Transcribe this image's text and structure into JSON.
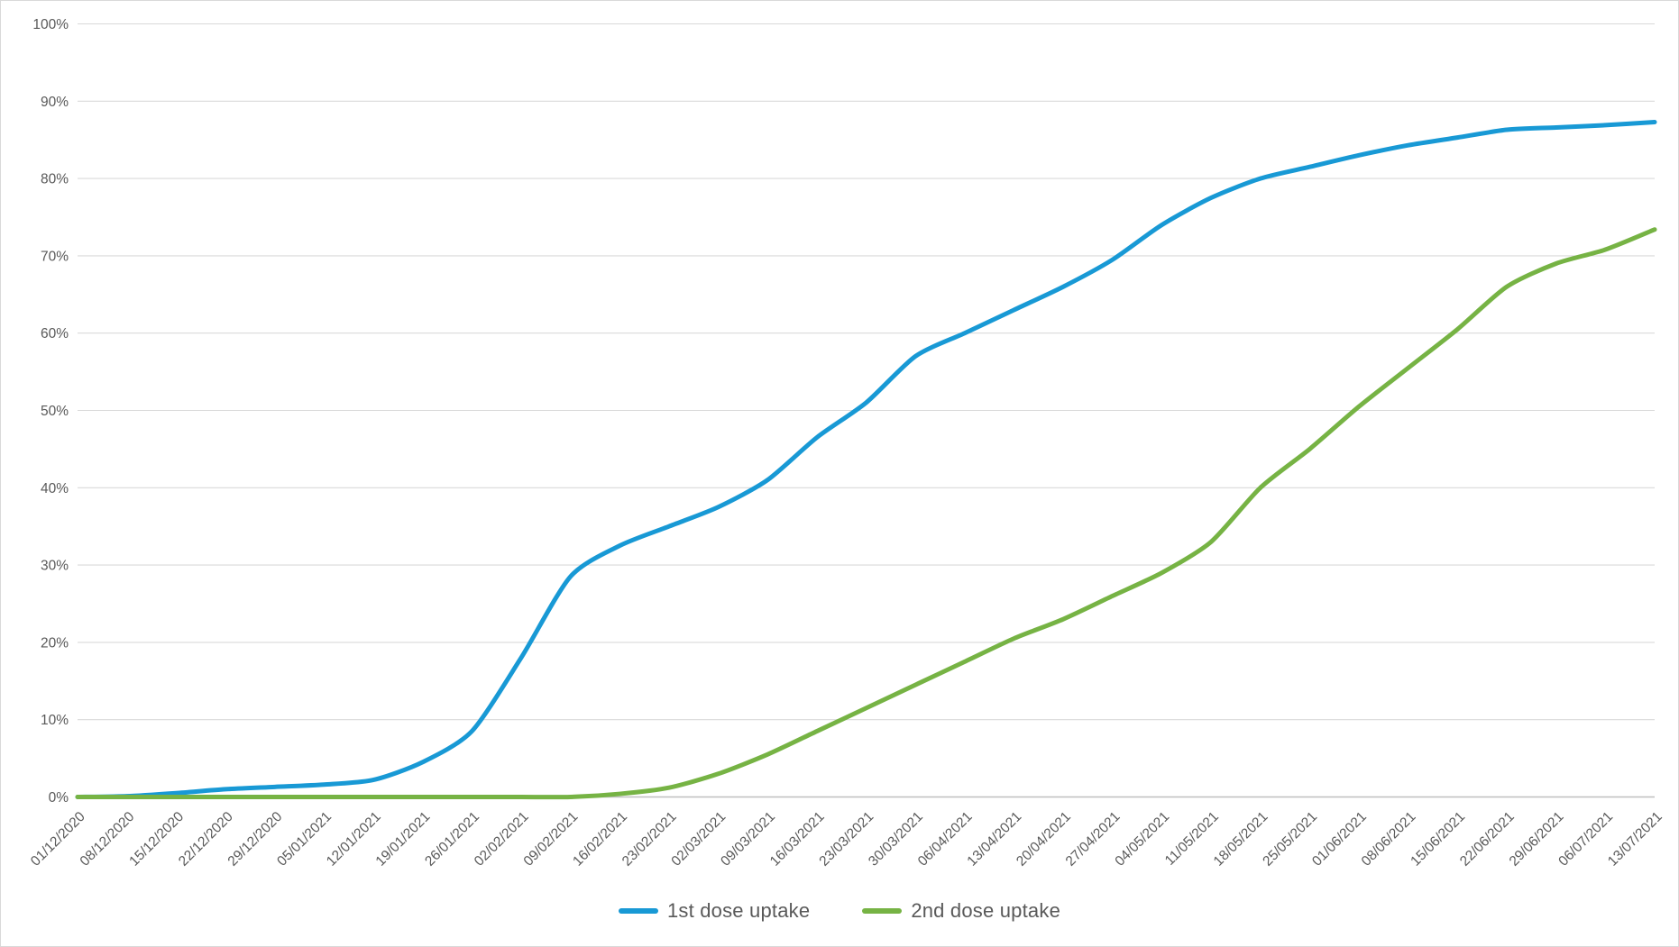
{
  "chart_data": {
    "type": "line",
    "title": "",
    "xlabel": "",
    "ylabel": "",
    "categories": [
      "01/12/2020",
      "08/12/2020",
      "15/12/2020",
      "22/12/2020",
      "29/12/2020",
      "05/01/2021",
      "12/01/2021",
      "19/01/2021",
      "26/01/2021",
      "02/02/2021",
      "09/02/2021",
      "16/02/2021",
      "23/02/2021",
      "02/03/2021",
      "09/03/2021",
      "16/03/2021",
      "23/03/2021",
      "30/03/2021",
      "06/04/2021",
      "13/04/2021",
      "20/04/2021",
      "27/04/2021",
      "04/05/2021",
      "11/05/2021",
      "18/05/2021",
      "25/05/2021",
      "01/06/2021",
      "08/06/2021",
      "15/06/2021",
      "22/06/2021",
      "29/06/2021",
      "06/07/2021",
      "13/07/2021"
    ],
    "series": [
      {
        "name": "1st dose uptake",
        "color": "#1899D5",
        "values": [
          0,
          0.1,
          0.5,
          1.0,
          1.3,
          1.6,
          2.2,
          4.5,
          8.5,
          18.0,
          28.5,
          32.5,
          35.0,
          37.5,
          41.0,
          46.5,
          51.0,
          57.0,
          60.0,
          63.0,
          66.0,
          69.5,
          74.0,
          77.5,
          80.0,
          81.5,
          83.0,
          84.3,
          85.3,
          86.3,
          86.6,
          86.9,
          87.3
        ]
      },
      {
        "name": "2nd dose uptake",
        "color": "#76B344",
        "values": [
          0,
          0,
          0,
          0,
          0,
          0,
          0,
          0,
          0,
          0,
          0,
          0.4,
          1.2,
          3.0,
          5.5,
          8.5,
          11.5,
          14.5,
          17.5,
          20.5,
          23.0,
          26.0,
          29.0,
          33.0,
          40.0,
          45.0,
          50.5,
          55.5,
          60.5,
          66.0,
          69.0,
          70.8,
          73.4
        ]
      }
    ],
    "yticks": [
      "0%",
      "10%",
      "20%",
      "30%",
      "40%",
      "50%",
      "60%",
      "70%",
      "80%",
      "90%",
      "100%"
    ],
    "ylim": [
      0,
      100
    ],
    "grid": "horizontal",
    "legend_position": "bottom-center",
    "colors": {
      "grid": "#D9D9D9",
      "axis_line": "#BFBFBF",
      "tick_text": "#595959",
      "background": "#FFFFFF",
      "border": "#D9D9D9"
    }
  }
}
